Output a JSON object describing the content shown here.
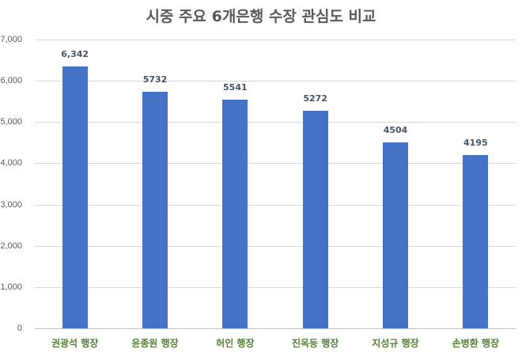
{
  "chart_data": {
    "type": "bar",
    "title": "시중 주요 6개은행 수장 관심도 비교",
    "categories": [
      "권광석 행장",
      "윤종원 행장",
      "허인 행장",
      "진옥동 행장",
      "지성규 행장",
      "손병환 행장"
    ],
    "values": [
      6342,
      5732,
      5541,
      5272,
      4504,
      4195
    ],
    "data_labels": [
      "6,342",
      "5732",
      "5541",
      "5272",
      "4504",
      "4195"
    ],
    "xlabel": "",
    "ylabel": "",
    "ylim": [
      0,
      7000
    ],
    "yticks": [
      "0",
      "1,000",
      "2,000",
      "3,000",
      "4,000",
      "5,000",
      "6,000",
      "7,000"
    ],
    "grid": true,
    "legend": "none",
    "colors": {
      "bar": "#4472c4",
      "title": "#595959",
      "category_label": "#548235",
      "data_label": "#44546a",
      "grid": "#d9d9d9"
    }
  }
}
